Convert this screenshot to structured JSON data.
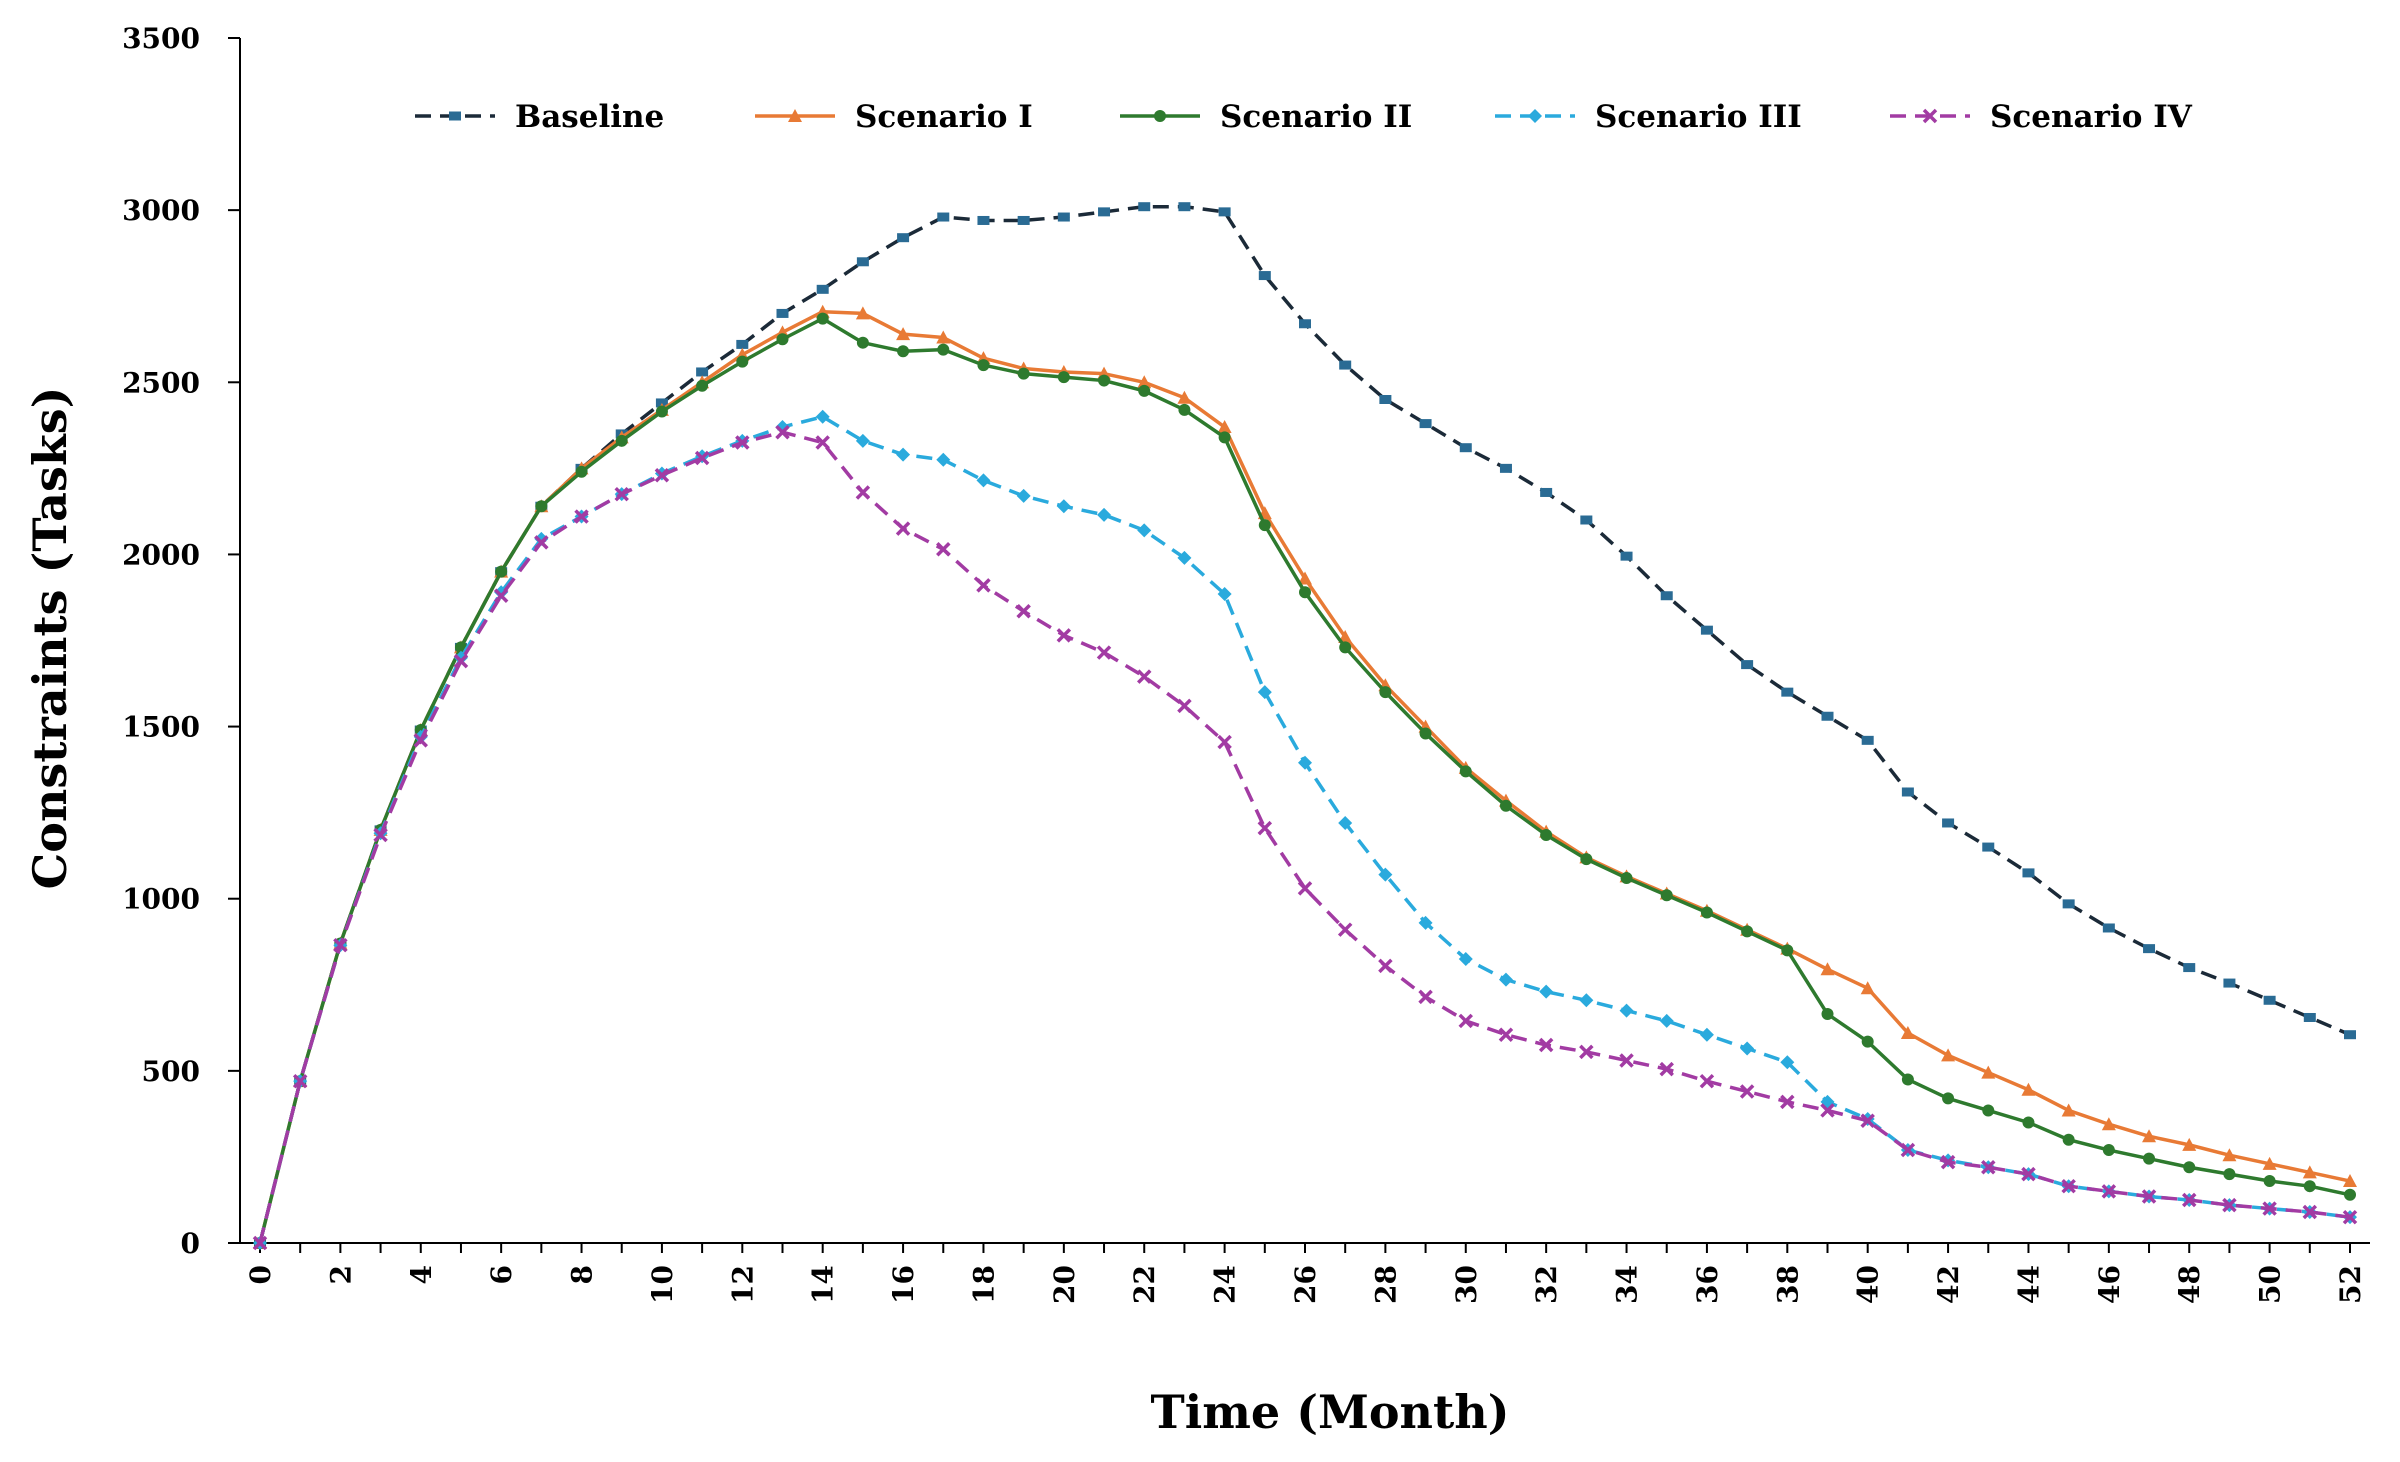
{
  "chart_data": {
    "type": "line",
    "xlabel": "Time (Month)",
    "ylabel": "Constraints (Tasks)",
    "ylim": [
      0,
      3500
    ],
    "yticks": [
      "0",
      "500",
      "1000",
      "1500",
      "2000",
      "2500",
      "3000",
      "3500"
    ],
    "xticks": [
      "0",
      "2",
      "4",
      "6",
      "8",
      "10",
      "12",
      "14",
      "16",
      "18",
      "20",
      "22",
      "24",
      "26",
      "28",
      "30",
      "32",
      "34",
      "36",
      "38",
      "40",
      "42",
      "44",
      "46",
      "48",
      "50",
      "52"
    ],
    "x": [
      0,
      1,
      2,
      3,
      4,
      5,
      6,
      7,
      8,
      9,
      10,
      11,
      12,
      13,
      14,
      15,
      16,
      17,
      18,
      19,
      20,
      21,
      22,
      23,
      24,
      25,
      26,
      27,
      28,
      29,
      30,
      31,
      32,
      33,
      34,
      35,
      36,
      37,
      38,
      39,
      40,
      41,
      42,
      43,
      44,
      45,
      46,
      47,
      48,
      49,
      50,
      51,
      52
    ],
    "legend_position": "top",
    "series": [
      {
        "name": "Baseline",
        "color": "#1b2a38",
        "marker_color": "#2a6b94",
        "dash": "dash",
        "marker": "square",
        "values": [
          0,
          470,
          870,
          1200,
          1490,
          1730,
          1950,
          2140,
          2250,
          2350,
          2440,
          2530,
          2610,
          2700,
          2770,
          2850,
          2920,
          2980,
          2970,
          2970,
          2980,
          2995,
          3010,
          3010,
          2995,
          2810,
          2670,
          2550,
          2450,
          2380,
          2310,
          2250,
          2180,
          2100,
          1995,
          1880,
          1780,
          1680,
          1600,
          1530,
          1460,
          1310,
          1220,
          1150,
          1075,
          985,
          915,
          855,
          800,
          755,
          705,
          655,
          605
        ]
      },
      {
        "name": "Scenario I",
        "color": "#e87a35",
        "marker_color": "#e87a35",
        "dash": "solid",
        "marker": "triangle",
        "values": [
          0,
          470,
          870,
          1200,
          1490,
          1730,
          1950,
          2140,
          2250,
          2340,
          2420,
          2500,
          2580,
          2645,
          2705,
          2700,
          2640,
          2630,
          2570,
          2540,
          2530,
          2525,
          2500,
          2455,
          2370,
          2120,
          1930,
          1760,
          1620,
          1500,
          1380,
          1285,
          1195,
          1120,
          1065,
          1015,
          965,
          910,
          855,
          795,
          740,
          610,
          545,
          495,
          445,
          385,
          345,
          310,
          285,
          255,
          230,
          205,
          180
        ]
      },
      {
        "name": "Scenario II",
        "color": "#2e7a2e",
        "marker_color": "#2e7a2e",
        "dash": "solid",
        "marker": "circle",
        "values": [
          0,
          470,
          870,
          1200,
          1490,
          1730,
          1950,
          2140,
          2240,
          2330,
          2415,
          2490,
          2560,
          2625,
          2685,
          2615,
          2590,
          2595,
          2550,
          2525,
          2515,
          2505,
          2475,
          2420,
          2340,
          2085,
          1890,
          1730,
          1600,
          1480,
          1370,
          1270,
          1185,
          1115,
          1060,
          1010,
          960,
          905,
          850,
          665,
          585,
          475,
          420,
          385,
          350,
          300,
          270,
          245,
          220,
          200,
          180,
          165,
          140
        ]
      },
      {
        "name": "Scenario III",
        "color": "#2aaadd",
        "marker_color": "#2aaadd",
        "dash": "dash",
        "marker": "diamond",
        "values": [
          0,
          470,
          865,
          1190,
          1470,
          1700,
          1890,
          2045,
          2110,
          2175,
          2235,
          2285,
          2330,
          2370,
          2400,
          2330,
          2290,
          2275,
          2215,
          2170,
          2140,
          2115,
          2070,
          1990,
          1885,
          1600,
          1395,
          1220,
          1070,
          930,
          825,
          765,
          730,
          705,
          675,
          645,
          605,
          565,
          525,
          410,
          360,
          270,
          240,
          220,
          200,
          165,
          150,
          135,
          125,
          110,
          100,
          90,
          75
        ]
      },
      {
        "name": "Scenario IV",
        "color": "#a23ba3",
        "marker_color": "#a23ba3",
        "dash": "dash",
        "marker": "cross",
        "values": [
          0,
          470,
          865,
          1185,
          1460,
          1690,
          1880,
          2035,
          2110,
          2175,
          2230,
          2280,
          2325,
          2355,
          2325,
          2180,
          2075,
          2015,
          1910,
          1835,
          1765,
          1715,
          1645,
          1560,
          1455,
          1205,
          1030,
          910,
          805,
          715,
          645,
          605,
          575,
          555,
          530,
          505,
          470,
          440,
          410,
          385,
          355,
          270,
          235,
          220,
          200,
          165,
          150,
          135,
          125,
          110,
          100,
          90,
          75
        ]
      }
    ]
  }
}
